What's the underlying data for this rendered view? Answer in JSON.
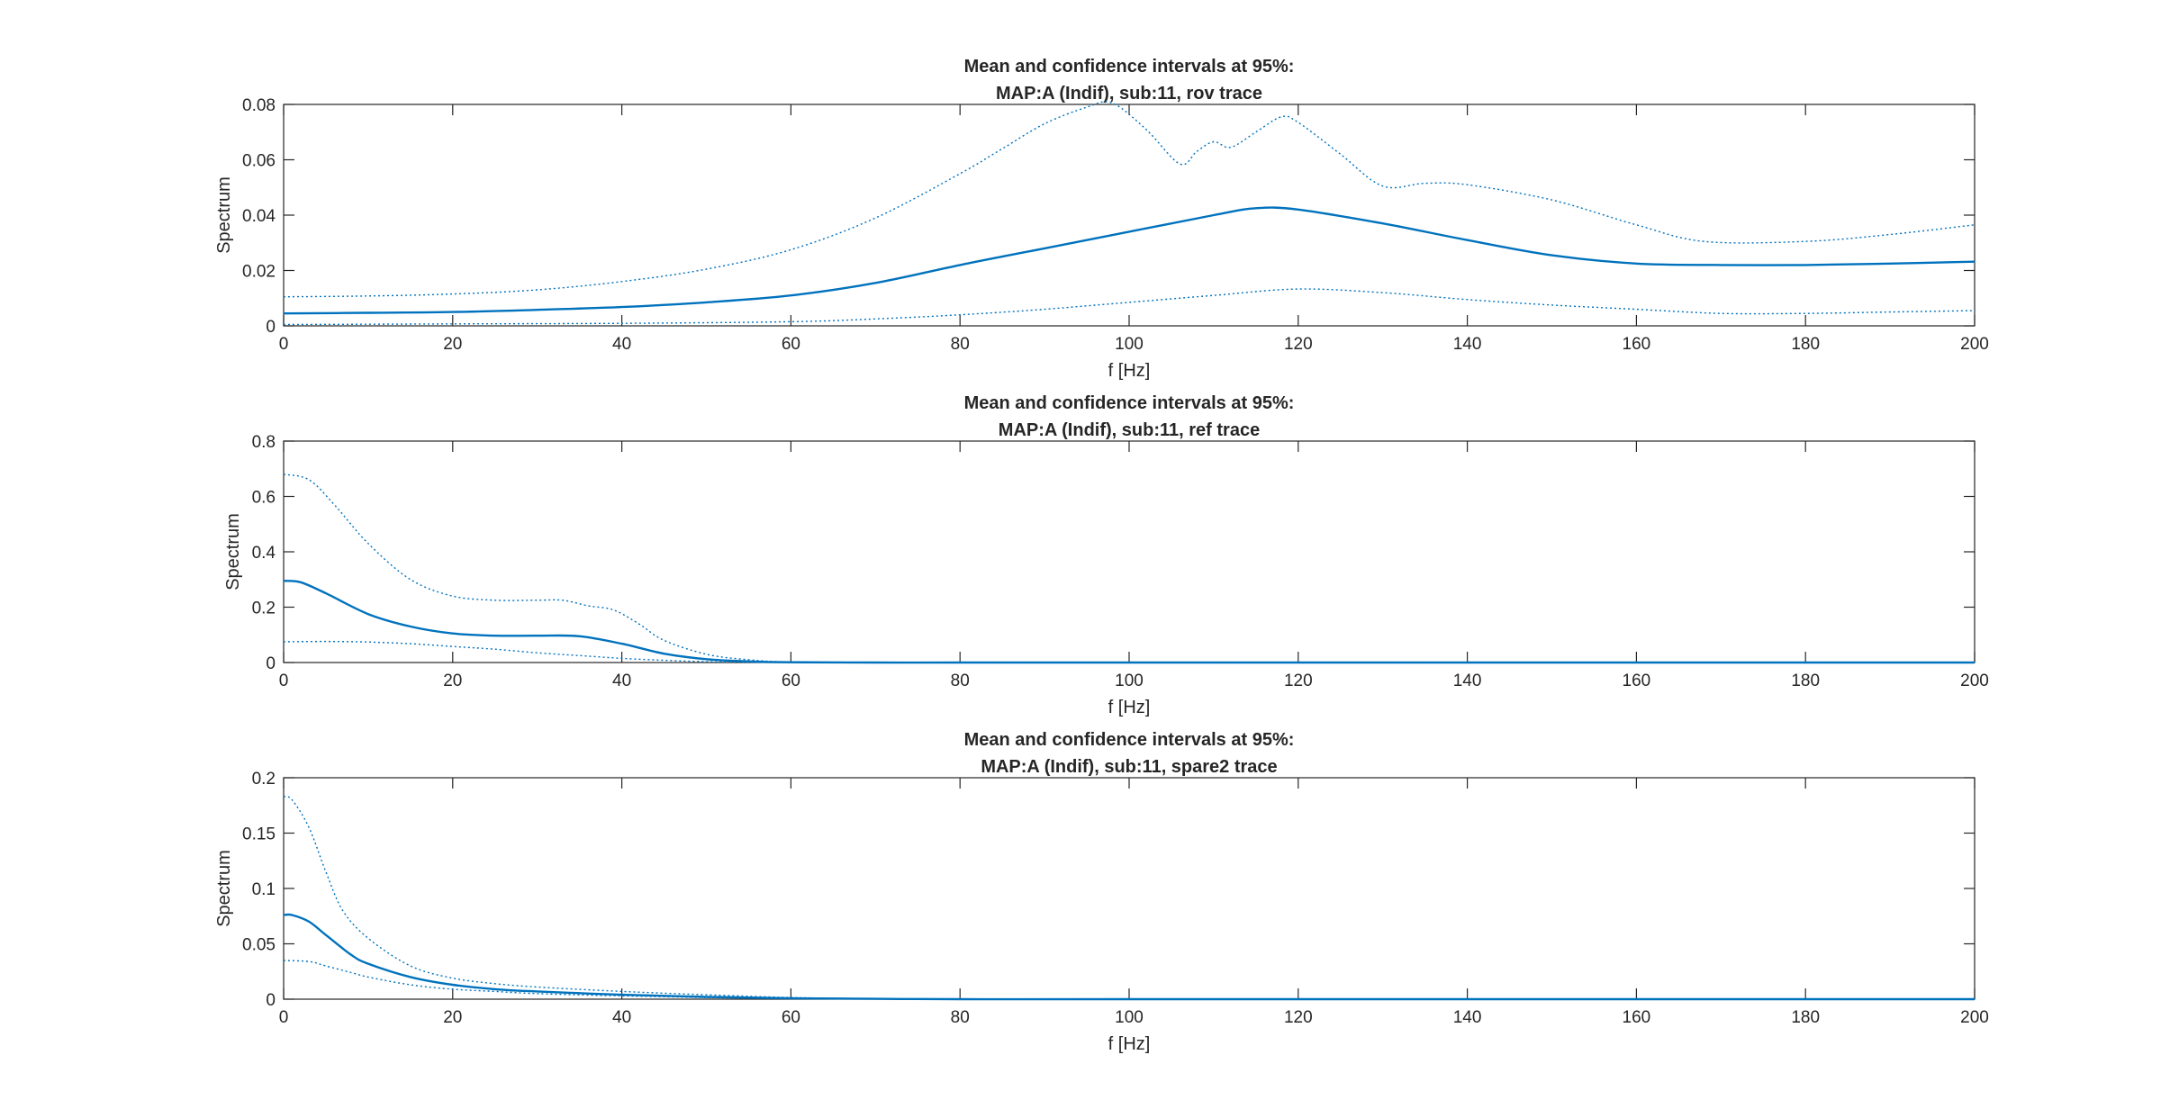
{
  "chart_data": [
    {
      "type": "line",
      "title": [
        "Mean and confidence intervals at 95%:",
        "MAP:A (Indif), sub:11, rov trace"
      ],
      "xlabel": "f [Hz]",
      "ylabel": "Spectrum",
      "xlim": [
        0,
        200
      ],
      "ylim": [
        0,
        0.08
      ],
      "xticks": [
        "0",
        "20",
        "40",
        "60",
        "80",
        "100",
        "120",
        "140",
        "160",
        "180",
        "200"
      ],
      "yticks": [
        "0",
        "0.02",
        "0.04",
        "0.06",
        "0.08"
      ],
      "grid": false,
      "color": "#0072BD",
      "series": [
        {
          "role": "mean",
          "style": "solid",
          "x": [
            0,
            10,
            20,
            30,
            40,
            50,
            60,
            70,
            80,
            90,
            100,
            110,
            115,
            120,
            130,
            140,
            150,
            160,
            170,
            180,
            190,
            200
          ],
          "y": [
            0.0045,
            0.0047,
            0.005,
            0.0058,
            0.0068,
            0.0085,
            0.011,
            0.0155,
            0.022,
            0.028,
            0.034,
            0.04,
            0.0425,
            0.042,
            0.037,
            0.031,
            0.0255,
            0.0225,
            0.022,
            0.022,
            0.0225,
            0.0232
          ]
        },
        {
          "role": "upper",
          "style": "dotted",
          "x": [
            0,
            10,
            20,
            30,
            40,
            50,
            60,
            70,
            80,
            85,
            90,
            95,
            98,
            102,
            106,
            108,
            110,
            112,
            115,
            118,
            120,
            125,
            130,
            135,
            140,
            150,
            160,
            168,
            180,
            190,
            200
          ],
          "y": [
            0.0105,
            0.0108,
            0.0115,
            0.013,
            0.016,
            0.0205,
            0.0275,
            0.039,
            0.055,
            0.064,
            0.073,
            0.079,
            0.0805,
            0.071,
            0.0585,
            0.063,
            0.0665,
            0.0645,
            0.07,
            0.0755,
            0.0735,
            0.062,
            0.0505,
            0.0515,
            0.051,
            0.0455,
            0.0365,
            0.0305,
            0.0305,
            0.033,
            0.0365
          ]
        },
        {
          "role": "lower",
          "style": "dotted",
          "x": [
            0,
            20,
            40,
            60,
            70,
            80,
            90,
            100,
            110,
            120,
            130,
            140,
            150,
            160,
            170,
            180,
            190,
            200
          ],
          "y": [
            0.0005,
            0.0007,
            0.0009,
            0.0015,
            0.0025,
            0.004,
            0.006,
            0.0085,
            0.011,
            0.0133,
            0.012,
            0.0095,
            0.0075,
            0.006,
            0.0045,
            0.0045,
            0.005,
            0.0055
          ]
        }
      ]
    },
    {
      "type": "line",
      "title": [
        "Mean and confidence intervals at 95%:",
        "MAP:A (Indif), sub:11, ref trace"
      ],
      "xlabel": "f [Hz]",
      "ylabel": "Spectrum",
      "xlim": [
        0,
        200
      ],
      "ylim": [
        0,
        0.8
      ],
      "xticks": [
        "0",
        "20",
        "40",
        "60",
        "80",
        "100",
        "120",
        "140",
        "160",
        "180",
        "200"
      ],
      "yticks": [
        "0",
        "0.2",
        "0.4",
        "0.6",
        "0.8"
      ],
      "grid": false,
      "color": "#0072BD",
      "series": [
        {
          "role": "mean",
          "style": "solid",
          "x": [
            0,
            2,
            5,
            10,
            15,
            20,
            25,
            30,
            35,
            40,
            45,
            50,
            55,
            60,
            70,
            80,
            100,
            150,
            200
          ],
          "y": [
            0.295,
            0.29,
            0.25,
            0.175,
            0.13,
            0.105,
            0.097,
            0.097,
            0.095,
            0.068,
            0.032,
            0.012,
            0.004,
            0.001,
            0.0,
            0.0,
            0.0,
            0.0,
            0.0
          ]
        },
        {
          "role": "upper",
          "style": "dotted",
          "x": [
            0,
            3,
            6,
            10,
            15,
            20,
            25,
            30,
            33,
            36,
            39,
            42,
            45,
            50,
            55,
            60,
            70,
            80,
            100,
            150,
            200
          ],
          "y": [
            0.68,
            0.66,
            0.57,
            0.43,
            0.3,
            0.24,
            0.225,
            0.225,
            0.225,
            0.205,
            0.19,
            0.14,
            0.08,
            0.03,
            0.01,
            0.002,
            0.0,
            0.0,
            0.0,
            0.0,
            0.0
          ]
        },
        {
          "role": "lower",
          "style": "dotted",
          "x": [
            0,
            5,
            10,
            15,
            20,
            25,
            30,
            35,
            40,
            45,
            50,
            55,
            60,
            70,
            100,
            150,
            200
          ],
          "y": [
            0.075,
            0.076,
            0.074,
            0.068,
            0.058,
            0.048,
            0.035,
            0.025,
            0.015,
            0.008,
            0.003,
            0.001,
            0.0,
            0.0,
            0.0,
            0.0,
            0.0
          ]
        }
      ]
    },
    {
      "type": "line",
      "title": [
        "Mean and confidence intervals at 95%:",
        "MAP:A (Indif), sub:11, spare2 trace"
      ],
      "xlabel": "f [Hz]",
      "ylabel": "Spectrum",
      "xlim": [
        0,
        200
      ],
      "ylim": [
        0,
        0.2
      ],
      "xticks": [
        "0",
        "20",
        "40",
        "60",
        "80",
        "100",
        "120",
        "140",
        "160",
        "180",
        "200"
      ],
      "yticks": [
        "0",
        "0.05",
        "0.1",
        "0.15",
        "0.2"
      ],
      "grid": false,
      "color": "#0072BD",
      "series": [
        {
          "role": "mean",
          "style": "solid",
          "x": [
            0,
            1,
            3,
            5,
            8,
            10,
            15,
            20,
            25,
            30,
            40,
            50,
            60,
            70,
            80,
            100,
            150,
            200
          ],
          "y": [
            0.076,
            0.076,
            0.07,
            0.058,
            0.04,
            0.032,
            0.02,
            0.013,
            0.009,
            0.007,
            0.004,
            0.002,
            0.0008,
            0.0003,
            0.0,
            0.0,
            0.0,
            0.0
          ]
        },
        {
          "role": "upper",
          "style": "dotted",
          "x": [
            0,
            1,
            3,
            5,
            7,
            10,
            15,
            20,
            25,
            30,
            40,
            50,
            60,
            70,
            80,
            100,
            150,
            200
          ],
          "y": [
            0.183,
            0.18,
            0.155,
            0.115,
            0.08,
            0.055,
            0.03,
            0.019,
            0.014,
            0.011,
            0.007,
            0.004,
            0.0015,
            0.0005,
            0.0,
            0.0,
            0.0,
            0.0
          ]
        },
        {
          "role": "lower",
          "style": "dotted",
          "x": [
            0,
            3,
            5,
            8,
            10,
            15,
            20,
            25,
            30,
            40,
            50,
            60,
            70,
            80,
            100,
            150,
            200
          ],
          "y": [
            0.035,
            0.034,
            0.03,
            0.024,
            0.02,
            0.013,
            0.009,
            0.007,
            0.005,
            0.003,
            0.0015,
            0.0005,
            0.0002,
            0.0,
            0.0,
            0.0,
            0.0
          ]
        }
      ]
    }
  ]
}
